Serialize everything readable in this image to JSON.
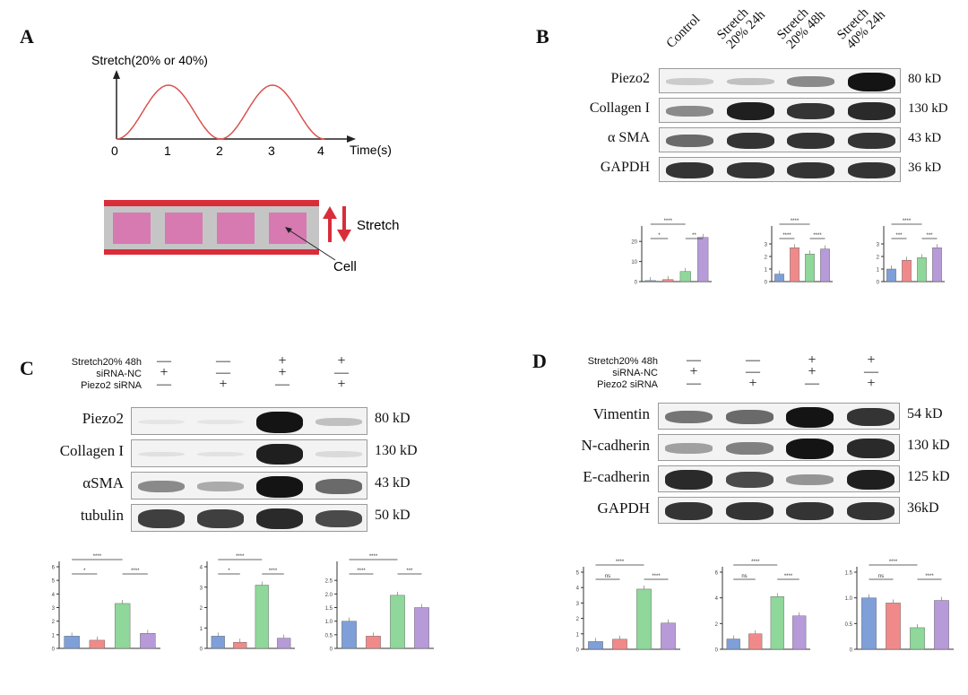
{
  "panels": {
    "A": {
      "letter": "A",
      "y_label": "Stretch(20% or 40%)",
      "x_label": "Time(s)",
      "ticks": [
        "0",
        "1",
        "2",
        "3",
        "4"
      ],
      "stretch_label": "Stretch",
      "cell_label": "Cell"
    },
    "B": {
      "letter": "B",
      "lanes": [
        "Control",
        "Stretch 20% 24h",
        "Stretch 20% 48h",
        "Stretch 40% 24h"
      ],
      "blots": [
        {
          "label": "Piezo2",
          "kd": "80 kD",
          "levels": [
            0.15,
            0.2,
            0.45,
            1.0
          ]
        },
        {
          "label": "Collagen I",
          "kd": "130 kD",
          "levels": [
            0.45,
            0.95,
            0.85,
            0.9
          ]
        },
        {
          "label": "α SMA",
          "kd": "43 kD",
          "levels": [
            0.6,
            0.85,
            0.85,
            0.85
          ]
        },
        {
          "label": "GAPDH",
          "kd": "36 kD",
          "levels": [
            0.85,
            0.85,
            0.85,
            0.85
          ]
        }
      ]
    },
    "C": {
      "letter": "C",
      "conditions": [
        {
          "label": "Stretch20% 48h",
          "signs": [
            "—",
            "—",
            "+",
            "+"
          ]
        },
        {
          "label": "siRNA-NC",
          "signs": [
            "+",
            "—",
            "+",
            "—"
          ]
        },
        {
          "label": "Piezo2 siRNA",
          "signs": [
            "—",
            "+",
            "—",
            "+"
          ]
        }
      ],
      "blots": [
        {
          "label": "Piezo2",
          "kd": "80 kD",
          "levels": [
            0.03,
            0.03,
            1.0,
            0.2
          ]
        },
        {
          "label": "Collagen I",
          "kd": "130 kD",
          "levels": [
            0.05,
            0.04,
            0.95,
            0.08
          ]
        },
        {
          "label": "αSMA",
          "kd": "43 kD",
          "levels": [
            0.45,
            0.3,
            1.0,
            0.6
          ]
        },
        {
          "label": "tubulin",
          "kd": "50 kD",
          "levels": [
            0.8,
            0.8,
            0.9,
            0.75
          ]
        }
      ]
    },
    "D": {
      "letter": "D",
      "conditions": [
        {
          "label": "Stretch20% 48h",
          "signs": [
            "—",
            "—",
            "+",
            "+"
          ]
        },
        {
          "label": "siRNA-NC",
          "signs": [
            "+",
            "—",
            "+",
            "—"
          ]
        },
        {
          "label": "Piezo2 siRNA",
          "signs": [
            "—",
            "+",
            "—",
            "+"
          ]
        }
      ],
      "blots": [
        {
          "label": "Vimentin",
          "kd": "54 kD",
          "levels": [
            0.55,
            0.6,
            1.0,
            0.85
          ]
        },
        {
          "label": "N-cadherin",
          "kd": "130 kD",
          "levels": [
            0.35,
            0.5,
            1.0,
            0.9
          ]
        },
        {
          "label": "E-cadherin",
          "kd": "125 kD",
          "levels": [
            0.9,
            0.75,
            0.4,
            0.95
          ]
        },
        {
          "label": "GAPDH",
          "kd": "36kD",
          "levels": [
            0.85,
            0.85,
            0.85,
            0.85
          ]
        }
      ]
    }
  },
  "chart_data": [
    {
      "type": "bar",
      "panel": "B",
      "values": [
        0.5,
        1.0,
        5.0,
        22.0
      ],
      "ylim": [
        0,
        25
      ],
      "ticks": [
        "0",
        "10",
        "20"
      ],
      "sig": [
        "****",
        "*",
        "**"
      ]
    },
    {
      "type": "bar",
      "panel": "B",
      "values": [
        0.6,
        2.7,
        2.2,
        2.6
      ],
      "ylim": [
        0,
        4
      ],
      "ticks": [
        "0",
        "1",
        "2",
        "3"
      ],
      "sig": [
        "****",
        "****",
        "****"
      ]
    },
    {
      "type": "bar",
      "panel": "B",
      "values": [
        1.0,
        1.7,
        1.9,
        2.7
      ],
      "ylim": [
        0,
        4
      ],
      "ticks": [
        "0",
        "1",
        "2",
        "3"
      ],
      "sig": [
        "****",
        "***",
        "***"
      ]
    },
    {
      "type": "bar",
      "panel": "C",
      "values": [
        0.9,
        0.6,
        3.3,
        1.1
      ],
      "ylim": [
        0,
        6
      ],
      "ticks": [
        "0",
        "1",
        "2",
        "3",
        "4",
        "5",
        "6"
      ],
      "sig": [
        "****",
        "*",
        "****"
      ]
    },
    {
      "type": "bar",
      "panel": "C",
      "values": [
        0.6,
        0.3,
        3.1,
        0.5
      ],
      "ylim": [
        0,
        4
      ],
      "ticks": [
        "0",
        "1",
        "2",
        "3",
        "4"
      ],
      "sig": [
        "****",
        "*",
        "****"
      ]
    },
    {
      "type": "bar",
      "panel": "C",
      "values": [
        1.0,
        0.45,
        1.95,
        1.5
      ],
      "ylim": [
        0,
        3
      ],
      "ticks": [
        "0",
        "0.5",
        "1.0",
        "1.5",
        "2.0",
        "2.5"
      ],
      "sig": [
        "****",
        "****",
        "***"
      ]
    },
    {
      "type": "bar",
      "panel": "D",
      "values": [
        0.5,
        0.65,
        3.9,
        1.7
      ],
      "ylim": [
        0,
        5
      ],
      "ticks": [
        "0",
        "1",
        "2",
        "3",
        "4",
        "5"
      ],
      "sig": [
        "****",
        "ns",
        "****"
      ]
    },
    {
      "type": "bar",
      "panel": "D",
      "values": [
        0.8,
        1.2,
        4.1,
        2.6
      ],
      "ylim": [
        0,
        6
      ],
      "ticks": [
        "0",
        "2",
        "4",
        "6"
      ],
      "sig": [
        "****",
        "ns",
        "****"
      ]
    },
    {
      "type": "bar",
      "panel": "D",
      "values": [
        1.0,
        0.9,
        0.42,
        0.95
      ],
      "ylim": [
        0,
        1.5
      ],
      "ticks": [
        "0",
        "0.5",
        "1.0",
        "1.5"
      ],
      "sig": [
        "****",
        "ns",
        "****"
      ]
    }
  ],
  "colors": {
    "blue": "#7f9fd8",
    "red": "#f08a8a",
    "green": "#8fd79a",
    "purple": "#b79ad8",
    "wave": "#d9534f",
    "strip": "#d92d3a",
    "cell": "#d67ab1",
    "gap": "#c5c5c5"
  }
}
